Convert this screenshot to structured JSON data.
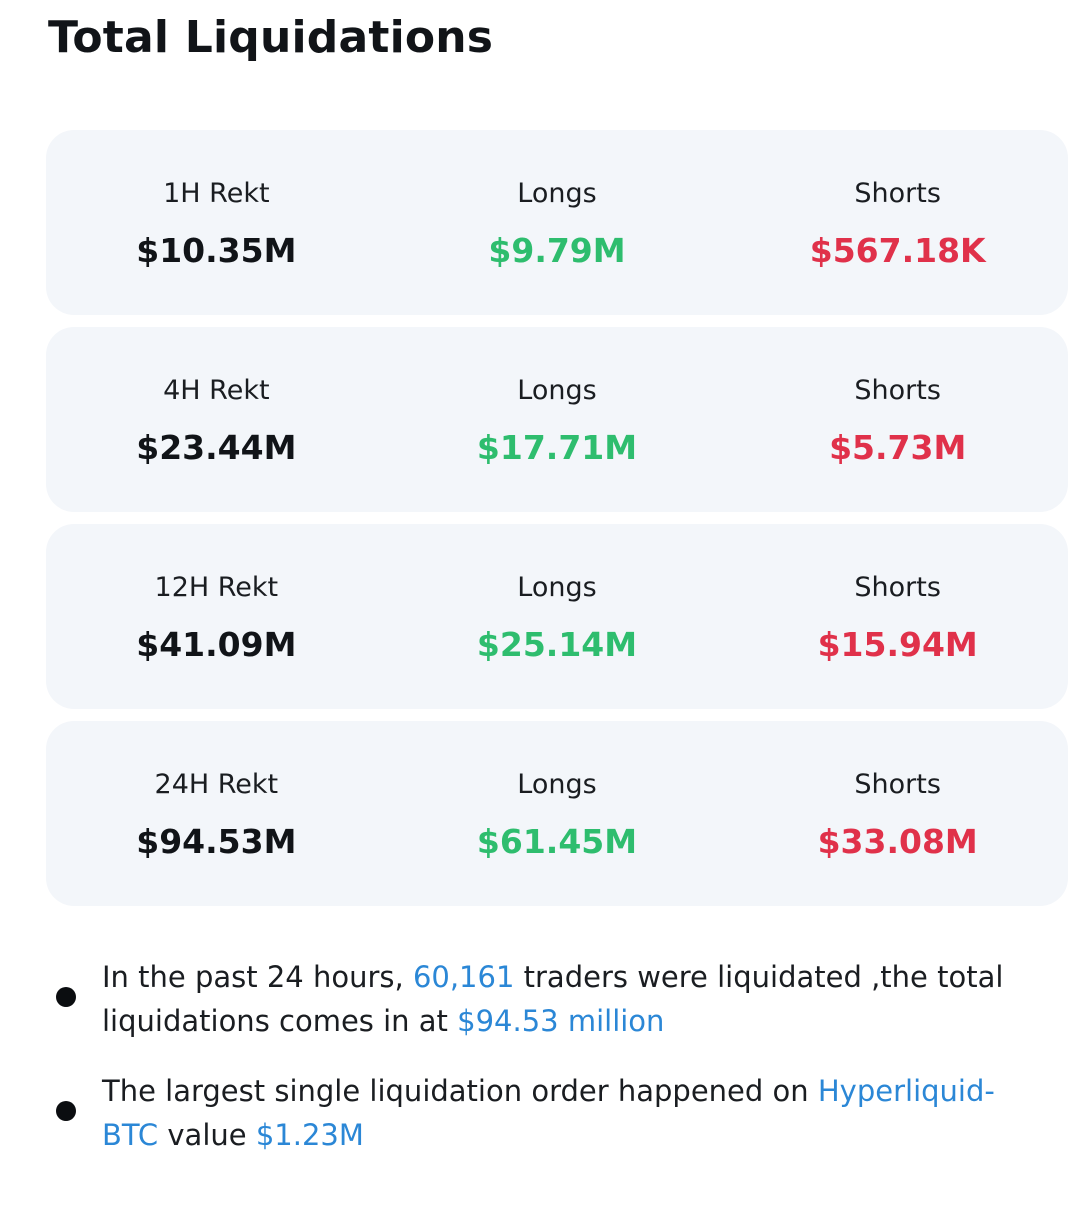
{
  "title": "Total Liquidations",
  "cards": [
    {
      "period_label": "1H Rekt",
      "total": "$10.35M",
      "longs_label": "Longs",
      "longs": "$9.79M",
      "shorts_label": "Shorts",
      "shorts": "$567.18K"
    },
    {
      "period_label": "4H Rekt",
      "total": "$23.44M",
      "longs_label": "Longs",
      "longs": "$17.71M",
      "shorts_label": "Shorts",
      "shorts": "$5.73M"
    },
    {
      "period_label": "12H Rekt",
      "total": "$41.09M",
      "longs_label": "Longs",
      "longs": "$25.14M",
      "shorts_label": "Shorts",
      "shorts": "$15.94M"
    },
    {
      "period_label": "24H Rekt",
      "total": "$94.53M",
      "longs_label": "Longs",
      "longs": "$61.45M",
      "shorts_label": "Shorts",
      "shorts": "$33.08M"
    }
  ],
  "bullets": {
    "first": {
      "prefix": "In the past 24 hours, ",
      "traders": "60,161",
      "middle": " traders were liquidated ,the total liquidations comes in at ",
      "amount": "$94.53 million"
    },
    "second": {
      "prefix": "The largest single liquidation order happened on ",
      "market": "Hyperliquid-BTC",
      "middle": " value ",
      "amount": "$1.23M"
    }
  },
  "colors": {
    "longs": "#2ebd6e",
    "shorts": "#e0314a",
    "highlight": "#2b87d6",
    "card_bg": "#f3f6fa"
  }
}
